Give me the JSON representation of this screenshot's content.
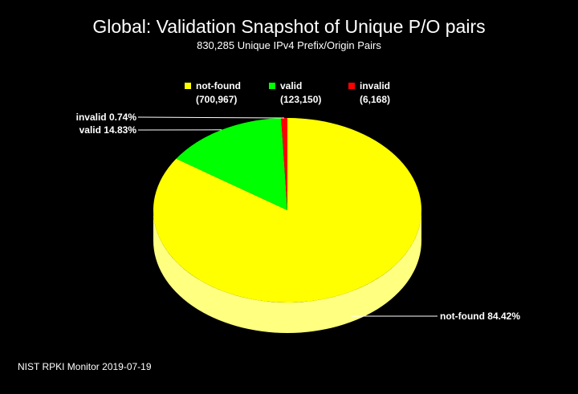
{
  "chart_data": {
    "type": "pie",
    "title": "Global: Validation Snapshot of Unique P/O pairs",
    "subtitle": "830,285 Unique IPv4 Prefix/Origin Pairs",
    "categories": [
      "not-found",
      "valid",
      "invalid"
    ],
    "values": [
      700967,
      123150,
      6168
    ],
    "value_labels": [
      "(700,967)",
      "(123,150)",
      "(6,168)"
    ],
    "slice_labels": [
      "not-found 84.42%",
      "valid 14.83%",
      "invalid 0.74%"
    ],
    "colors": [
      "#ffff00",
      "#00ff00",
      "#ff0000"
    ],
    "legend": "top-center"
  },
  "footer": "NIST RPKI Monitor 2019-07-19",
  "colors": {
    "background": "#000000",
    "text": "#ffffff",
    "side_not_found": "#ffff80"
  }
}
